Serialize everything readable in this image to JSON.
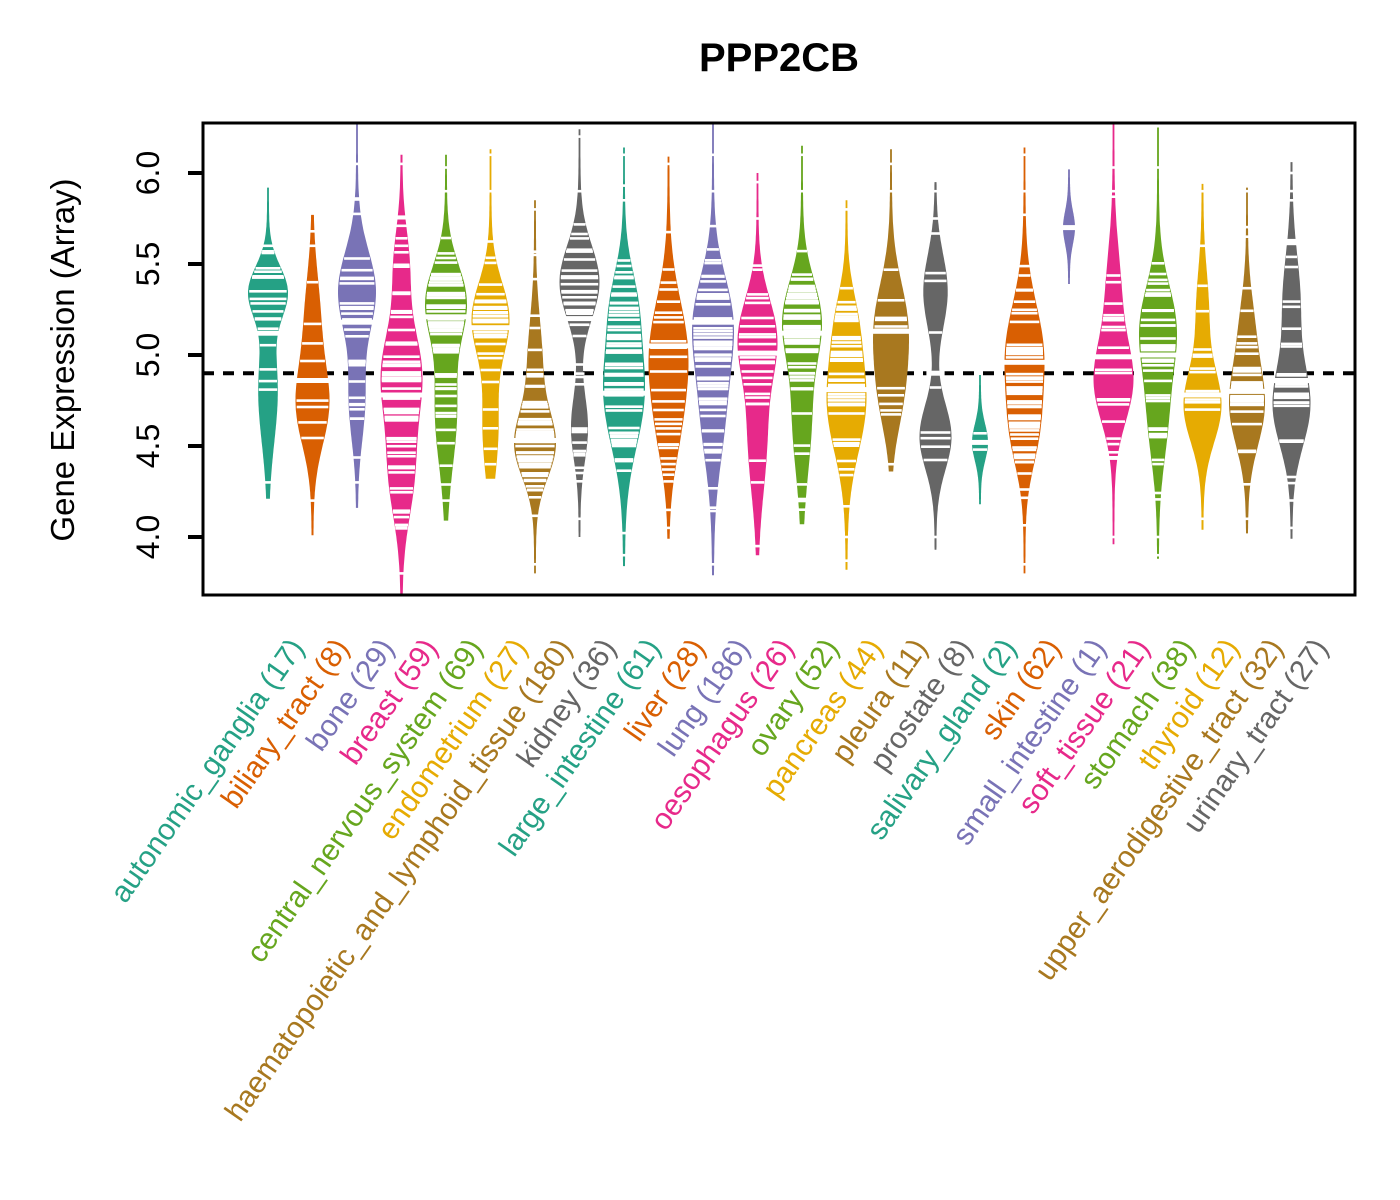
{
  "title": "PPP2CB",
  "y_axis": {
    "label": "Gene Expression (Array)",
    "tick_labels": [
      "4.0",
      "4.5",
      "5.0",
      "5.5",
      "6.0"
    ],
    "tick_values": [
      4.0,
      4.5,
      5.0,
      5.5,
      6.0
    ]
  },
  "chart_data": {
    "type": "violin",
    "title": "PPP2CB",
    "ylabel": "Gene Expression (Array)",
    "ylim": [
      3.68,
      6.27
    ],
    "yticks": [
      4.0,
      4.5,
      5.0,
      5.5,
      6.0
    ],
    "grid": false,
    "reference_line": {
      "y": 4.9,
      "style": "dashed",
      "color": "#000000"
    },
    "palette": [
      "#25A185",
      "#D95F02",
      "#7973B6",
      "#E7298A",
      "#66A61E",
      "#E6AB02",
      "#A8781F",
      "#666666"
    ],
    "groups": [
      {
        "label": "autonomic_ganglia",
        "n": 17,
        "display": "autonomic_ganglia (17)",
        "color": "#25A185",
        "min": 4.21,
        "max": 5.92,
        "median": 5.12,
        "halfwidth": 20,
        "peaks": [
          {
            "mu": 5.35,
            "sigma": 0.14,
            "w": 1
          },
          {
            "mu": 4.8,
            "sigma": 0.28,
            "w": 0.5
          }
        ],
        "tail_ticks": [
          5.6,
          4.3
        ]
      },
      {
        "label": "biliary_tract",
        "n": 8,
        "display": "biliary_tract (8)",
        "color": "#D95F02",
        "min": 4.01,
        "max": 5.77,
        "median": 4.86,
        "halfwidth": 17,
        "peaks": [
          {
            "mu": 4.72,
            "sigma": 0.22,
            "w": 1
          },
          {
            "mu": 5.2,
            "sigma": 0.25,
            "w": 0.45
          }
        ],
        "tail_ticks": [
          5.6,
          5.4,
          4.2
        ]
      },
      {
        "label": "bone",
        "n": 29,
        "display": "bone (29)",
        "color": "#7973B6",
        "min": 4.16,
        "max": 6.27,
        "median": 5.18,
        "halfwidth": 19,
        "peaks": [
          {
            "mu": 5.35,
            "sigma": 0.22,
            "w": 1
          },
          {
            "mu": 4.75,
            "sigma": 0.22,
            "w": 0.4
          }
        ],
        "tail_ticks": [
          6.05,
          4.3
        ]
      },
      {
        "label": "breast",
        "n": 59,
        "display": "breast (59)",
        "color": "#E7298A",
        "min": 3.68,
        "max": 6.1,
        "median": 4.78,
        "halfwidth": 21,
        "peaks": [
          {
            "mu": 4.9,
            "sigma": 0.25,
            "w": 1
          },
          {
            "mu": 4.35,
            "sigma": 0.25,
            "w": 0.6
          },
          {
            "mu": 5.5,
            "sigma": 0.2,
            "w": 0.35
          }
        ],
        "tail_ticks": [
          6.05,
          5.6,
          3.8
        ]
      },
      {
        "label": "central_nervous_system",
        "n": 69,
        "display": "central_nervous_system (69)",
        "color": "#66A61E",
        "min": 4.09,
        "max": 6.1,
        "median": 5.21,
        "halfwidth": 21,
        "peaks": [
          {
            "mu": 5.3,
            "sigma": 0.2,
            "w": 1
          },
          {
            "mu": 4.7,
            "sigma": 0.3,
            "w": 0.55
          }
        ],
        "tail_ticks": [
          6.03,
          5.9,
          4.2
        ]
      },
      {
        "label": "endometrium",
        "n": 27,
        "display": "endometrium (27)",
        "color": "#E6AB02",
        "min": 4.32,
        "max": 6.13,
        "median": 5.15,
        "halfwidth": 19,
        "peaks": [
          {
            "mu": 5.2,
            "sigma": 0.2,
            "w": 1
          },
          {
            "mu": 4.6,
            "sigma": 0.25,
            "w": 0.4
          }
        ],
        "tail_ticks": [
          6.1,
          5.9,
          4.4
        ]
      },
      {
        "label": "haematopoietic_and_lymphoid_tissue",
        "n": 180,
        "display": "haematopoietic_and_lymphoid_tissue (180)",
        "color": "#A8781F",
        "min": 3.8,
        "max": 5.85,
        "median": 4.53,
        "halfwidth": 21,
        "peaks": [
          {
            "mu": 4.5,
            "sigma": 0.18,
            "w": 1
          },
          {
            "mu": 4.95,
            "sigma": 0.25,
            "w": 0.35
          }
        ],
        "tail_ticks": [
          5.8,
          5.55,
          3.85
        ]
      },
      {
        "label": "kidney",
        "n": 36,
        "display": "kidney (36)",
        "color": "#666666",
        "min": 4.0,
        "max": 6.24,
        "median": 5.2,
        "halfwidth": 20,
        "peaks": [
          {
            "mu": 5.4,
            "sigma": 0.2,
            "w": 1
          },
          {
            "mu": 4.6,
            "sigma": 0.18,
            "w": 0.4
          }
        ],
        "tail_ticks": [
          6.2,
          5.9,
          4.1
        ]
      },
      {
        "label": "large_intestine",
        "n": 61,
        "display": "large_intestine (61)",
        "color": "#25A185",
        "min": 3.84,
        "max": 6.14,
        "median": 4.79,
        "halfwidth": 21,
        "peaks": [
          {
            "mu": 4.8,
            "sigma": 0.3,
            "w": 1
          },
          {
            "mu": 5.3,
            "sigma": 0.2,
            "w": 0.45
          }
        ],
        "tail_ticks": [
          6.1,
          5.85,
          3.9
        ]
      },
      {
        "label": "liver",
        "n": 28,
        "display": "liver (28)",
        "color": "#D95F02",
        "min": 3.99,
        "max": 6.09,
        "median": 5.05,
        "halfwidth": 20,
        "peaks": [
          {
            "mu": 5.0,
            "sigma": 0.3,
            "w": 1
          },
          {
            "mu": 4.55,
            "sigma": 0.22,
            "w": 0.3
          }
        ],
        "tail_ticks": [
          6.05,
          4.05
        ]
      },
      {
        "label": "lung",
        "n": 186,
        "display": "lung (186)",
        "color": "#7973B6",
        "min": 3.79,
        "max": 6.27,
        "median": 5.18,
        "halfwidth": 21,
        "peaks": [
          {
            "mu": 5.2,
            "sigma": 0.25,
            "w": 1
          },
          {
            "mu": 4.7,
            "sigma": 0.3,
            "w": 0.65
          }
        ],
        "tail_ticks": [
          6.1,
          5.9,
          3.85
        ]
      },
      {
        "label": "oesophagus",
        "n": 26,
        "display": "oesophagus (26)",
        "color": "#E7298A",
        "min": 3.9,
        "max": 6.0,
        "median": 5.01,
        "halfwidth": 20,
        "peaks": [
          {
            "mu": 5.1,
            "sigma": 0.22,
            "w": 1
          },
          {
            "mu": 4.55,
            "sigma": 0.3,
            "w": 0.5
          }
        ],
        "tail_ticks": [
          5.95,
          5.75,
          3.95
        ]
      },
      {
        "label": "ovary",
        "n": 52,
        "display": "ovary (52)",
        "color": "#66A61E",
        "min": 4.07,
        "max": 6.15,
        "median": 5.12,
        "halfwidth": 20,
        "peaks": [
          {
            "mu": 5.2,
            "sigma": 0.22,
            "w": 1
          },
          {
            "mu": 4.65,
            "sigma": 0.3,
            "w": 0.5
          }
        ],
        "tail_ticks": [
          6.1,
          5.9,
          4.15
        ]
      },
      {
        "label": "pancreas",
        "n": 44,
        "display": "pancreas (44)",
        "color": "#E6AB02",
        "min": 3.82,
        "max": 5.85,
        "median": 4.81,
        "halfwidth": 20,
        "peaks": [
          {
            "mu": 4.75,
            "sigma": 0.28,
            "w": 1
          },
          {
            "mu": 5.2,
            "sigma": 0.18,
            "w": 0.35
          }
        ],
        "tail_ticks": [
          5.8,
          4.0,
          3.87
        ]
      },
      {
        "label": "pleura",
        "n": 11,
        "display": "pleura (11)",
        "color": "#A8781F",
        "min": 4.36,
        "max": 6.13,
        "median": 5.13,
        "halfwidth": 18,
        "peaks": [
          {
            "mu": 5.15,
            "sigma": 0.25,
            "w": 1
          },
          {
            "mu": 4.75,
            "sigma": 0.2,
            "w": 0.5
          }
        ],
        "tail_ticks": [
          6.05,
          5.9,
          4.4
        ]
      },
      {
        "label": "prostate",
        "n": 8,
        "display": "prostate (8)",
        "color": "#666666",
        "min": 3.93,
        "max": 5.95,
        "median": 4.9,
        "halfwidth": 16,
        "peaks": [
          {
            "mu": 4.55,
            "sigma": 0.18,
            "w": 1
          },
          {
            "mu": 5.35,
            "sigma": 0.2,
            "w": 0.75
          }
        ],
        "tail_ticks": [
          5.9,
          5.75,
          5.45,
          4.0
        ]
      },
      {
        "label": "salivary_gland",
        "n": 2,
        "display": "salivary_gland (2)",
        "color": "#25A185",
        "min": 4.18,
        "max": 4.89,
        "median": 4.52,
        "halfwidth": 8,
        "peaks": [
          {
            "mu": 4.52,
            "sigma": 0.1,
            "w": 1
          }
        ],
        "tail_ticks": [],
        "points": [
          4.57,
          4.48
        ]
      },
      {
        "label": "skin",
        "n": 62,
        "display": "skin (62)",
        "color": "#D95F02",
        "min": 3.8,
        "max": 6.14,
        "median": 4.96,
        "halfwidth": 20,
        "peaks": [
          {
            "mu": 5.0,
            "sigma": 0.28,
            "w": 1
          },
          {
            "mu": 4.55,
            "sigma": 0.2,
            "w": 0.5
          }
        ],
        "tail_ticks": [
          6.1,
          5.9,
          3.85
        ]
      },
      {
        "label": "small_intestine",
        "n": 1,
        "display": "small_intestine (1)",
        "color": "#7973B6",
        "min": 5.39,
        "max": 6.02,
        "median": 5.7,
        "halfwidth": 6,
        "peaks": [
          {
            "mu": 5.7,
            "sigma": 0.09,
            "w": 1
          }
        ],
        "tail_ticks": [],
        "points": [
          5.7
        ]
      },
      {
        "label": "soft_tissue",
        "n": 21,
        "display": "soft_tissue (21)",
        "color": "#E7298A",
        "min": 3.96,
        "max": 6.27,
        "median": 4.99,
        "halfwidth": 20,
        "peaks": [
          {
            "mu": 4.85,
            "sigma": 0.22,
            "w": 1
          },
          {
            "mu": 5.35,
            "sigma": 0.25,
            "w": 0.35
          }
        ],
        "tail_ticks": [
          6.03,
          5.9,
          4.0
        ]
      },
      {
        "label": "stomach",
        "n": 38,
        "display": "stomach (38)",
        "color": "#66A61E",
        "min": 3.88,
        "max": 6.25,
        "median": 5.0,
        "halfwidth": 19,
        "peaks": [
          {
            "mu": 5.15,
            "sigma": 0.24,
            "w": 1
          },
          {
            "mu": 4.65,
            "sigma": 0.25,
            "w": 0.5
          }
        ],
        "tail_ticks": [
          6.03,
          4.0,
          3.9
        ]
      },
      {
        "label": "thyroid",
        "n": 12,
        "display": "thyroid (12)",
        "color": "#E6AB02",
        "min": 4.04,
        "max": 5.94,
        "median": 4.78,
        "halfwidth": 19,
        "peaks": [
          {
            "mu": 4.72,
            "sigma": 0.2,
            "w": 1
          },
          {
            "mu": 5.25,
            "sigma": 0.22,
            "w": 0.3
          }
        ],
        "tail_ticks": [
          5.9,
          5.6,
          4.1
        ]
      },
      {
        "label": "upper_aerodigestive_tract",
        "n": 32,
        "display": "upper_aerodigestive_tract (32)",
        "color": "#A8781F",
        "min": 4.02,
        "max": 5.92,
        "median": 4.8,
        "halfwidth": 18,
        "peaks": [
          {
            "mu": 4.72,
            "sigma": 0.22,
            "w": 1
          },
          {
            "mu": 5.15,
            "sigma": 0.2,
            "w": 0.35
          }
        ],
        "tail_ticks": [
          5.9,
          5.65,
          4.1
        ]
      },
      {
        "label": "urinary_tract",
        "n": 27,
        "display": "urinary_tract (27)",
        "color": "#666666",
        "min": 3.99,
        "max": 6.06,
        "median": 4.86,
        "halfwidth": 19,
        "peaks": [
          {
            "mu": 4.72,
            "sigma": 0.22,
            "w": 1
          },
          {
            "mu": 5.3,
            "sigma": 0.25,
            "w": 0.45
          }
        ],
        "tail_ticks": [
          6.0,
          5.85,
          4.05
        ]
      }
    ]
  }
}
